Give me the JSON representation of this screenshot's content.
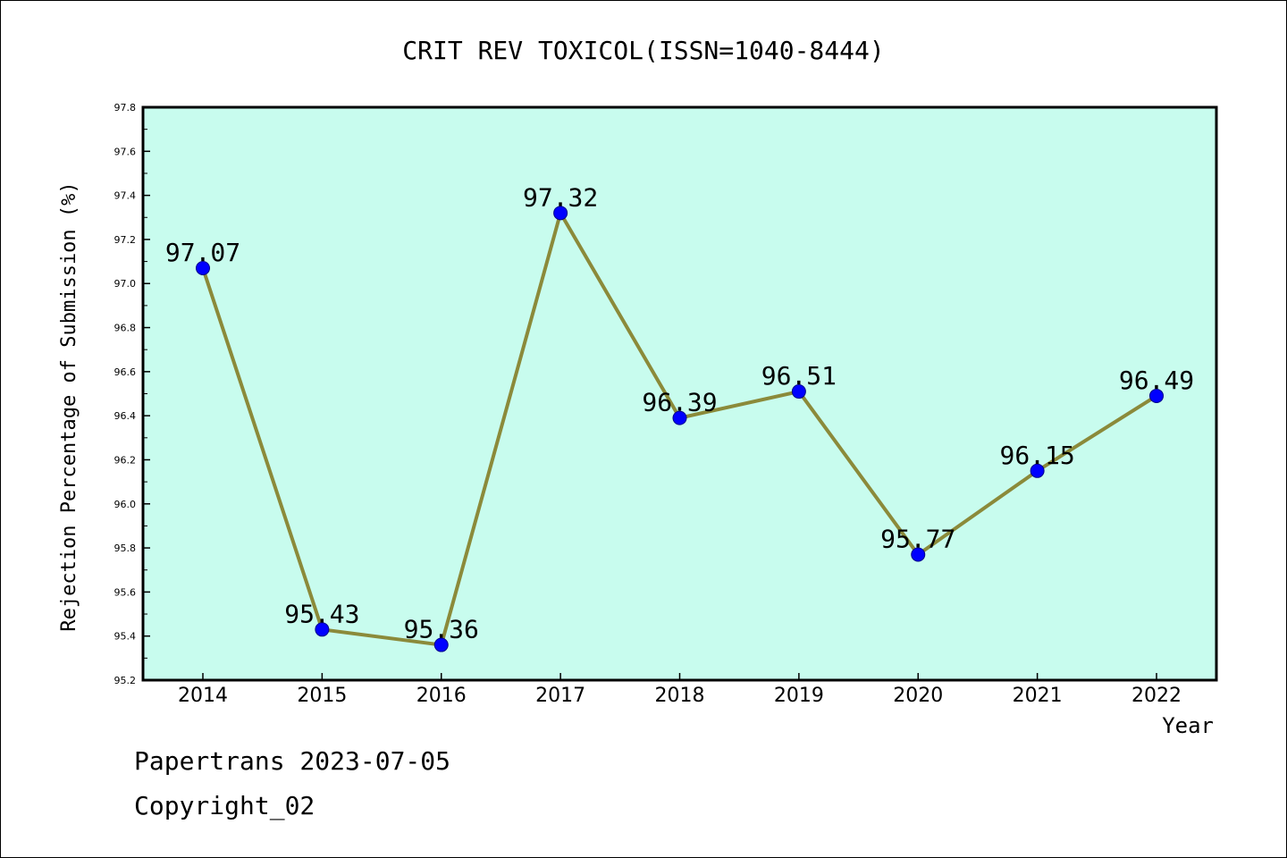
{
  "chart_data": {
    "type": "line",
    "title": "CRIT REV TOXICOL(ISSN=1040-8444)",
    "xlabel": "Year",
    "ylabel": "Rejection Percentage of Submission (%)",
    "categories": [
      "2014",
      "2015",
      "2016",
      "2017",
      "2018",
      "2019",
      "2020",
      "2021",
      "2022"
    ],
    "values": [
      97.07,
      95.43,
      95.36,
      97.32,
      96.39,
      96.51,
      95.77,
      96.15,
      96.49
    ],
    "value_labels": [
      "97.07",
      "95.43",
      "95.36",
      "97.32",
      "96.39",
      "96.51",
      "95.77",
      "96.15",
      "96.49"
    ],
    "ylim": [
      95.2,
      97.8
    ],
    "yticks": [
      "95.2",
      "95.4",
      "95.6",
      "95.8",
      "96.0",
      "96.2",
      "96.4",
      "96.6",
      "96.8",
      "97.0",
      "97.2",
      "97.4",
      "97.6",
      "97.8"
    ],
    "grid": false,
    "colors": {
      "plot_background": "#c8fcee",
      "line": "#8b8a3a",
      "marker": "#0000ff"
    }
  },
  "footer": {
    "line1": "Papertrans 2023-07-05",
    "line2": "Copyright_02"
  }
}
